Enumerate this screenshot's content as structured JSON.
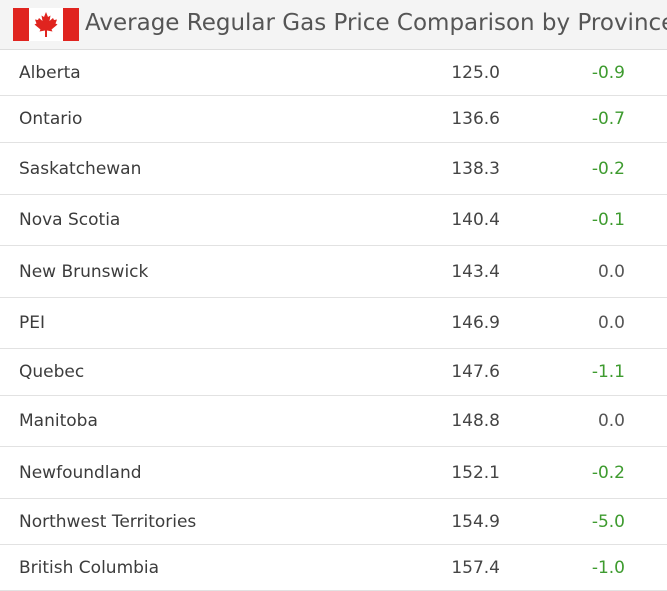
{
  "header": {
    "title": "Average Regular Gas Price Comparison by Province",
    "flag_icon": "canada-flag-icon",
    "flag_colors": {
      "red": "#e0241f",
      "white": "#ffffff"
    }
  },
  "colors": {
    "negative_change": "#3e9b2f",
    "neutral_change": "#555555"
  },
  "provinces": [
    {
      "name": "Alberta",
      "price": "125.0",
      "change": "-0.9"
    },
    {
      "name": "Ontario",
      "price": "136.6",
      "change": "-0.7"
    },
    {
      "name": "Saskatchewan",
      "price": "138.3",
      "change": "-0.2"
    },
    {
      "name": "Nova Scotia",
      "price": "140.4",
      "change": "-0.1"
    },
    {
      "name": "New Brunswick",
      "price": "143.4",
      "change": "0.0"
    },
    {
      "name": "PEI",
      "price": "146.9",
      "change": "0.0"
    },
    {
      "name": "Quebec",
      "price": "147.6",
      "change": "-1.1"
    },
    {
      "name": "Manitoba",
      "price": "148.8",
      "change": "0.0"
    },
    {
      "name": "Newfoundland",
      "price": "152.1",
      "change": "-0.2"
    },
    {
      "name": "Northwest Territories",
      "price": "154.9",
      "change": "-5.0"
    },
    {
      "name": "British Columbia",
      "price": "157.4",
      "change": "-1.0"
    }
  ]
}
